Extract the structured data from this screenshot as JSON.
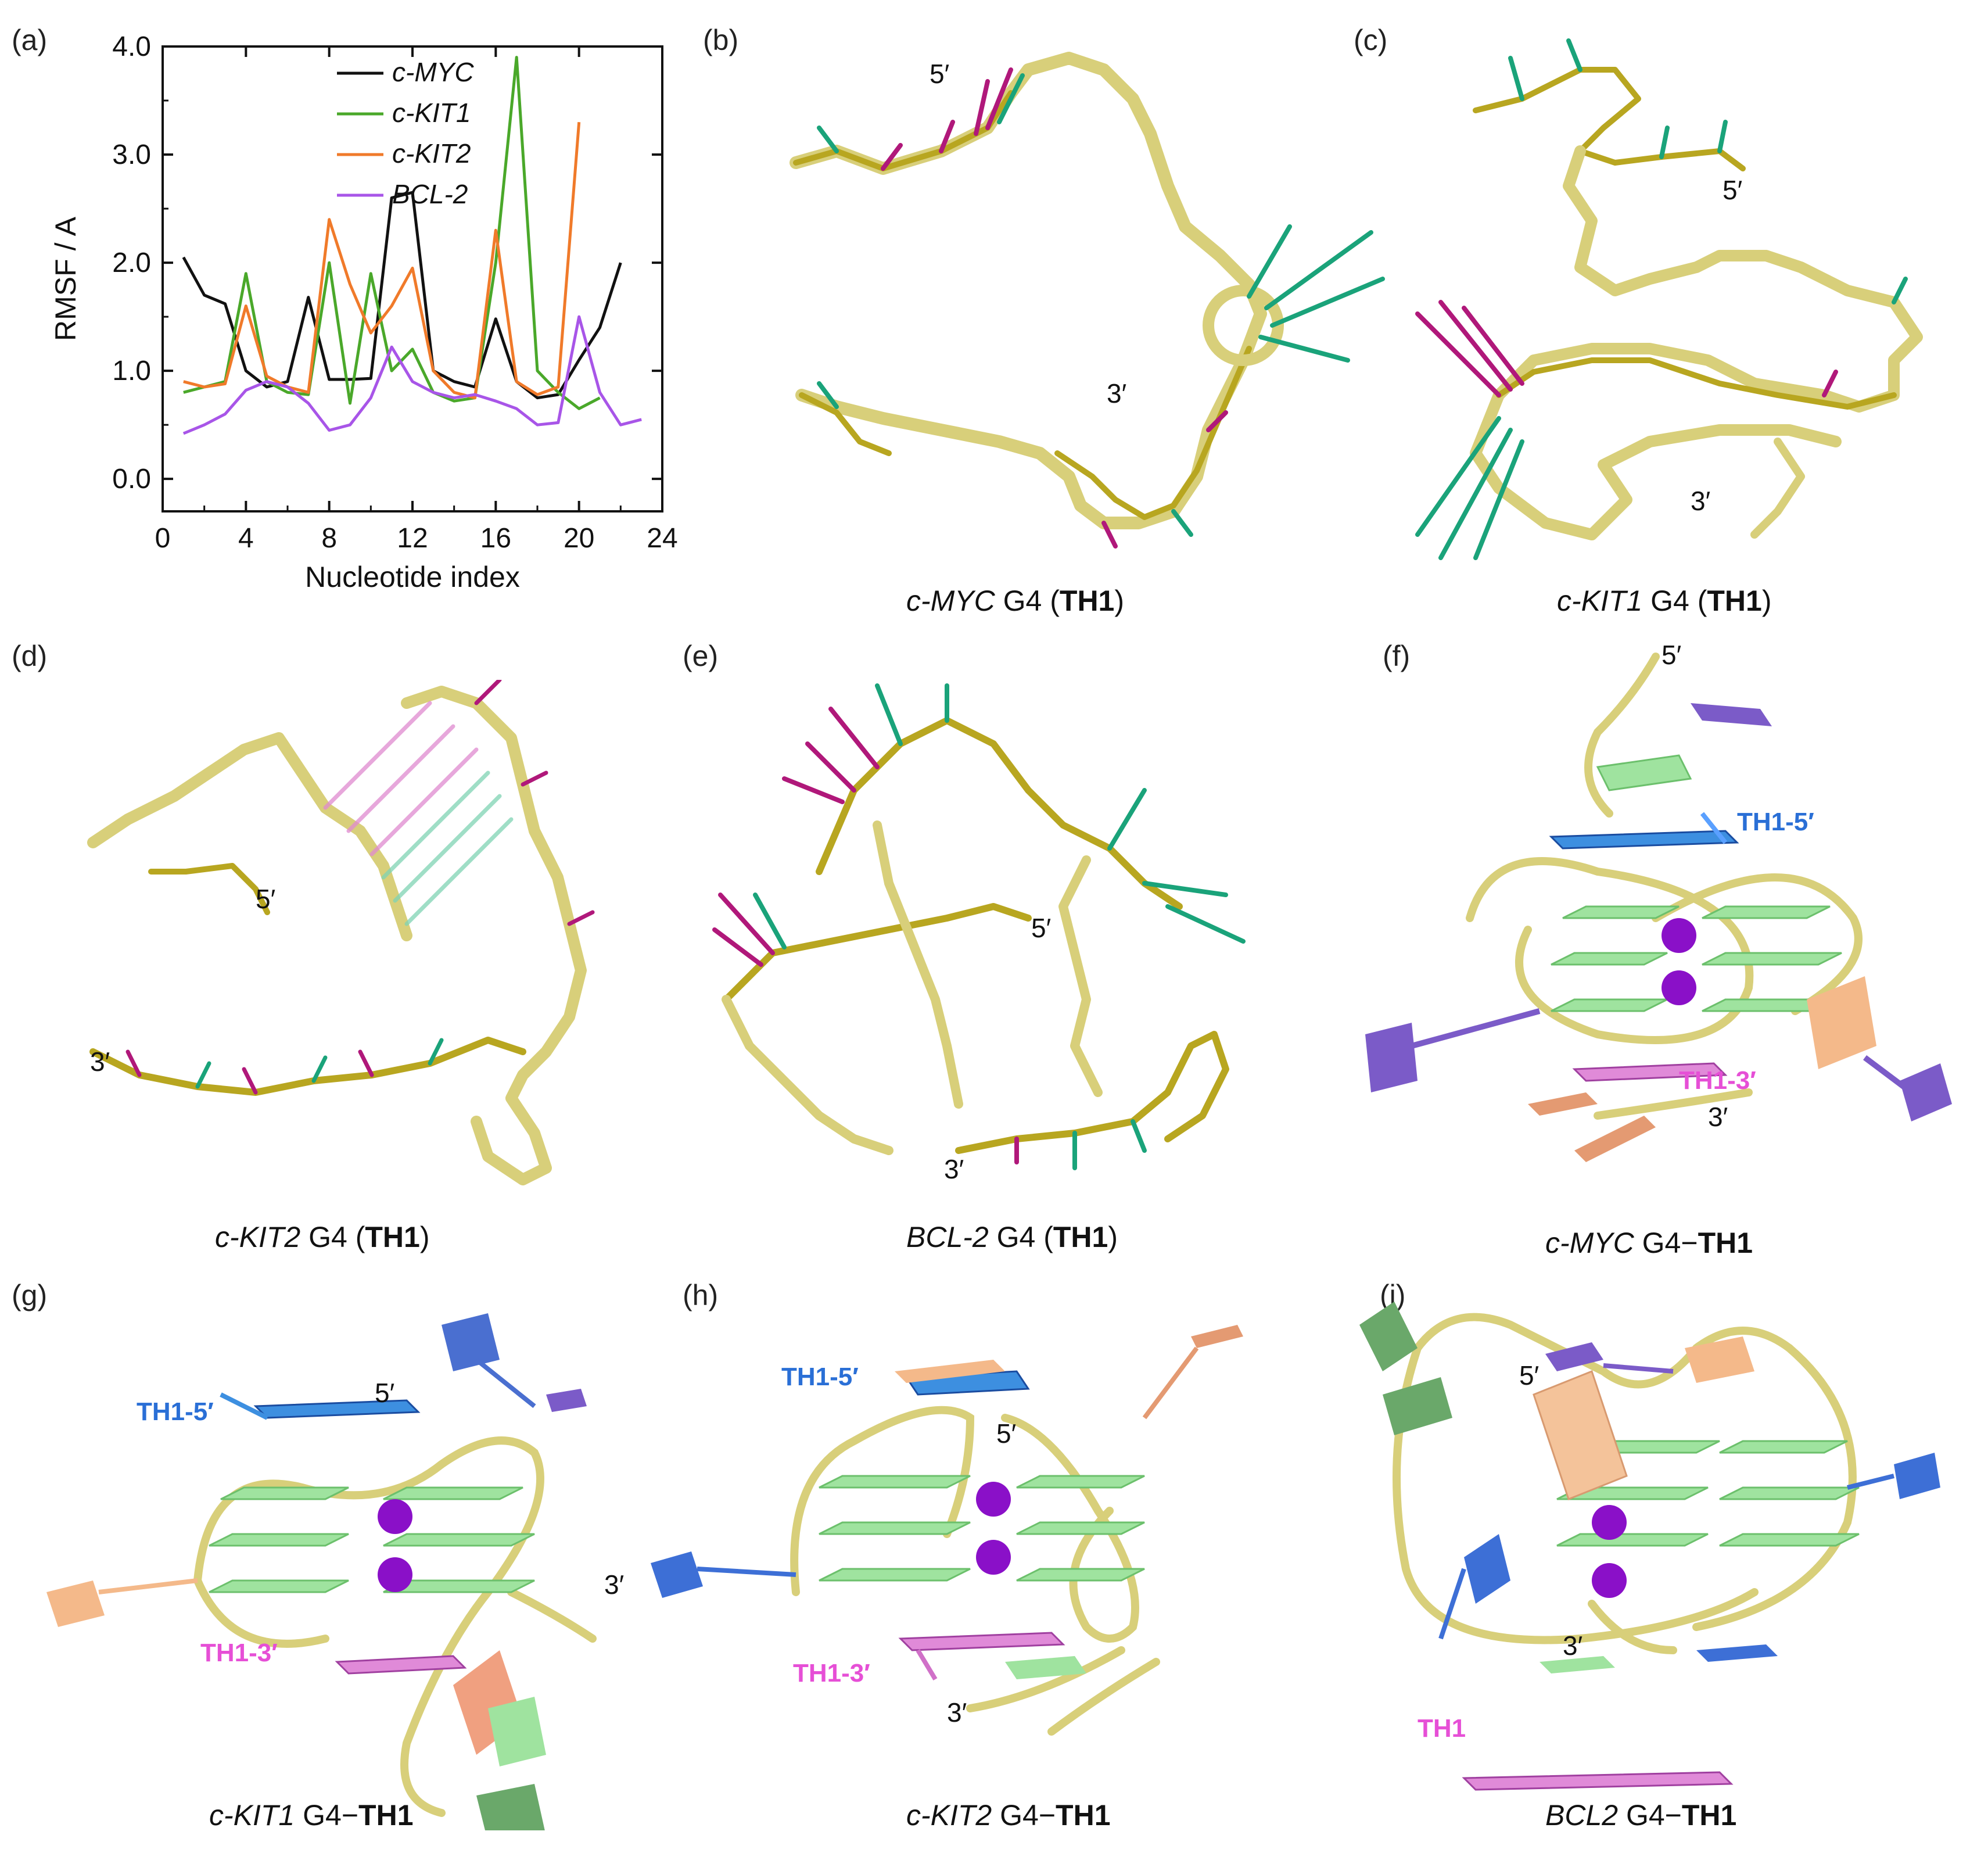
{
  "panels": {
    "a": {
      "label": "(a)"
    },
    "b": {
      "label": "(b)",
      "caption_gene": "c-MYC",
      "caption_g4": " G4 (",
      "caption_ligand": "TH1",
      "caption_close": ")",
      "end5": "5′",
      "end3": "3′"
    },
    "c": {
      "label": "(c)",
      "caption_gene": "c-KIT1",
      "caption_g4": " G4 (",
      "caption_ligand": "TH1",
      "caption_close": ")",
      "end5": "5′",
      "end3": "3′"
    },
    "d": {
      "label": "(d)",
      "caption_gene": "c-KIT2",
      "caption_g4": " G4 (",
      "caption_ligand": "TH1",
      "caption_close": ")",
      "end5": "5′",
      "end3": "3′"
    },
    "e": {
      "label": "(e)",
      "caption_gene": "BCL-2",
      "caption_g4": " G4 (",
      "caption_ligand": "TH1",
      "caption_close": ")",
      "end5": "5′",
      "end3": "3′"
    },
    "f": {
      "label": "(f)",
      "caption_gene": "c-MYC",
      "caption_g4": " G4−",
      "caption_ligand": "TH1",
      "end5": "5′",
      "end3": "3′",
      "lig5": "TH1",
      "lig5_suffix": "-5′",
      "lig3": "TH1",
      "lig3_suffix": "-3′"
    },
    "g": {
      "label": "(g)",
      "caption_gene": "c-KIT1",
      "caption_g4": " G4−",
      "caption_ligand": "TH1",
      "end5": "5′",
      "end3": "3′",
      "lig5": "TH1",
      "lig5_suffix": "-5′",
      "lig3": "TH1",
      "lig3_suffix": "-3′"
    },
    "h": {
      "label": "(h)",
      "caption_gene": "c-KIT2",
      "caption_g4": " G4−",
      "caption_ligand": "TH1",
      "end5": "5′",
      "end3": "3′",
      "lig5": "TH1",
      "lig5_suffix": "-5′",
      "lig3": "TH1",
      "lig3_suffix": "-3′"
    },
    "i": {
      "label": "(i)",
      "caption_gene": "BCL2",
      "caption_g4": " G4−",
      "caption_ligand": "TH1",
      "end5": "5′",
      "end3": "3′",
      "lig": "TH1"
    }
  },
  "colors": {
    "backbone": "#d8cf7a",
    "vector_green": "#1aa37a",
    "vector_magenta": "#b0187a",
    "guanine": "#9fe39f",
    "potassium": "#8a10c8",
    "purple_base": "#7b5bc8",
    "peach_base": "#f4b98a",
    "blue_base": "#3d6fd6",
    "green_base": "#6aa86a"
  },
  "chart_data": {
    "type": "line",
    "xlabel": "Nucleotide index",
    "ylabel": "RMSF / A",
    "xlim": [
      0,
      24
    ],
    "ylim": [
      -0.3,
      4.0
    ],
    "xticks": [
      "0",
      "4",
      "8",
      "12",
      "16",
      "20",
      "24"
    ],
    "yticks": [
      "0.0",
      "1.0",
      "2.0",
      "3.0",
      "4.0"
    ],
    "legend_position": "top-right",
    "series": [
      {
        "name": "c-MYC",
        "color": "#111111",
        "x": [
          1,
          2,
          3,
          4,
          5,
          6,
          7,
          8,
          9,
          10,
          11,
          12,
          13,
          14,
          15,
          16,
          17,
          18,
          19,
          20,
          21,
          22
        ],
        "y": [
          2.05,
          1.7,
          1.62,
          1.0,
          0.85,
          0.9,
          1.68,
          0.92,
          0.92,
          0.93,
          2.6,
          2.65,
          1.0,
          0.9,
          0.85,
          1.48,
          0.9,
          0.75,
          0.78,
          1.1,
          1.4,
          2.0
        ]
      },
      {
        "name": "c-KIT1",
        "color": "#4aa82a",
        "x": [
          1,
          2,
          3,
          4,
          5,
          6,
          7,
          8,
          9,
          10,
          11,
          12,
          13,
          14,
          15,
          16,
          17,
          18,
          19,
          20,
          21
        ],
        "y": [
          0.8,
          0.85,
          0.9,
          1.9,
          0.9,
          0.8,
          0.78,
          2.0,
          0.7,
          1.9,
          1.0,
          1.2,
          0.8,
          0.72,
          0.75,
          2.0,
          3.9,
          1.0,
          0.8,
          0.65,
          0.75
        ]
      },
      {
        "name": "c-KIT2",
        "color": "#f07a2a",
        "x": [
          1,
          2,
          3,
          4,
          5,
          6,
          7,
          8,
          9,
          10,
          11,
          12,
          13,
          14,
          15,
          16,
          17,
          18,
          19,
          20
        ],
        "y": [
          0.9,
          0.85,
          0.88,
          1.6,
          0.95,
          0.85,
          0.8,
          2.4,
          1.8,
          1.35,
          1.6,
          1.95,
          1.0,
          0.8,
          0.75,
          2.3,
          0.9,
          0.78,
          0.85,
          3.3
        ]
      },
      {
        "name": "BCL-2",
        "color": "#a855e8",
        "x": [
          1,
          2,
          3,
          4,
          5,
          6,
          7,
          8,
          9,
          10,
          11,
          12,
          13,
          14,
          15,
          16,
          17,
          18,
          19,
          20,
          21,
          22,
          23
        ],
        "y": [
          0.42,
          0.5,
          0.6,
          0.82,
          0.9,
          0.85,
          0.7,
          0.45,
          0.5,
          0.75,
          1.22,
          0.9,
          0.8,
          0.75,
          0.78,
          0.72,
          0.65,
          0.5,
          0.52,
          1.5,
          0.8,
          0.5,
          0.55
        ]
      }
    ]
  }
}
